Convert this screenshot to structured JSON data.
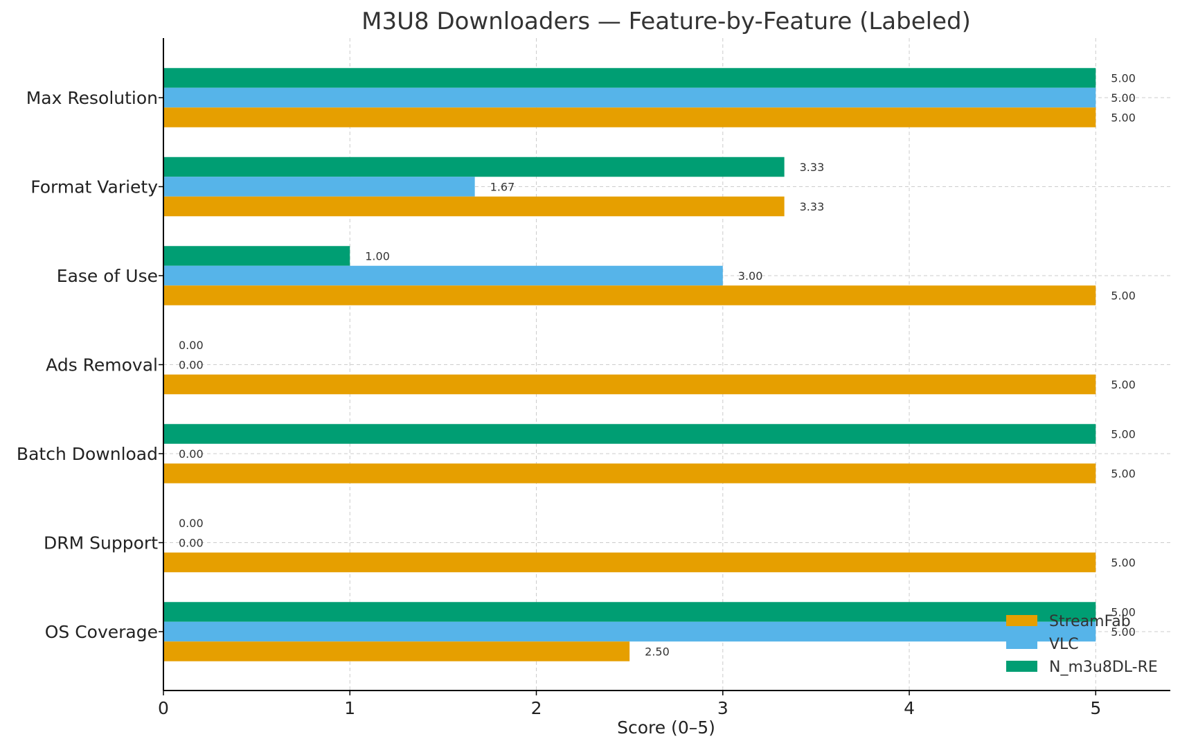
{
  "chart_data": {
    "type": "bar",
    "orientation": "horizontal",
    "title": "M3U8 Downloaders — Feature-by-Feature (Labeled)",
    "xlabel": "Score (0–5)",
    "ylabel": "",
    "xlim": [
      0,
      5.4
    ],
    "x_ticks": [
      "0",
      "1",
      "2",
      "3",
      "4",
      "5"
    ],
    "categories": [
      "Max Resolution",
      "Format Variety",
      "Ease of Use",
      "Ads Removal",
      "Batch Download",
      "DRM Support",
      "OS Coverage"
    ],
    "series": [
      {
        "name": "StreamFab",
        "color": "#E69F00",
        "values": [
          5.0,
          3.33,
          5.0,
          5.0,
          5.0,
          5.0,
          2.5
        ],
        "labels": [
          "5.00",
          "3.33",
          "5.00",
          "5.00",
          "5.00",
          "5.00",
          "2.50"
        ]
      },
      {
        "name": "VLC",
        "color": "#56B4E9",
        "values": [
          5.0,
          1.67,
          3.0,
          0.0,
          0.0,
          0.0,
          5.0
        ],
        "labels": [
          "5.00",
          "1.67",
          "3.00",
          "0.00",
          "0.00",
          "0.00",
          "5.00"
        ]
      },
      {
        "name": "N_m3u8DL-RE",
        "color": "#009E73",
        "values": [
          5.0,
          3.33,
          1.0,
          0.0,
          5.0,
          0.0,
          5.0
        ],
        "labels": [
          "5.00",
          "3.33",
          "1.00",
          "0.00",
          "5.00",
          "0.00",
          "5.00"
        ]
      }
    ],
    "grid": true,
    "legend_position": "bottom-right"
  }
}
